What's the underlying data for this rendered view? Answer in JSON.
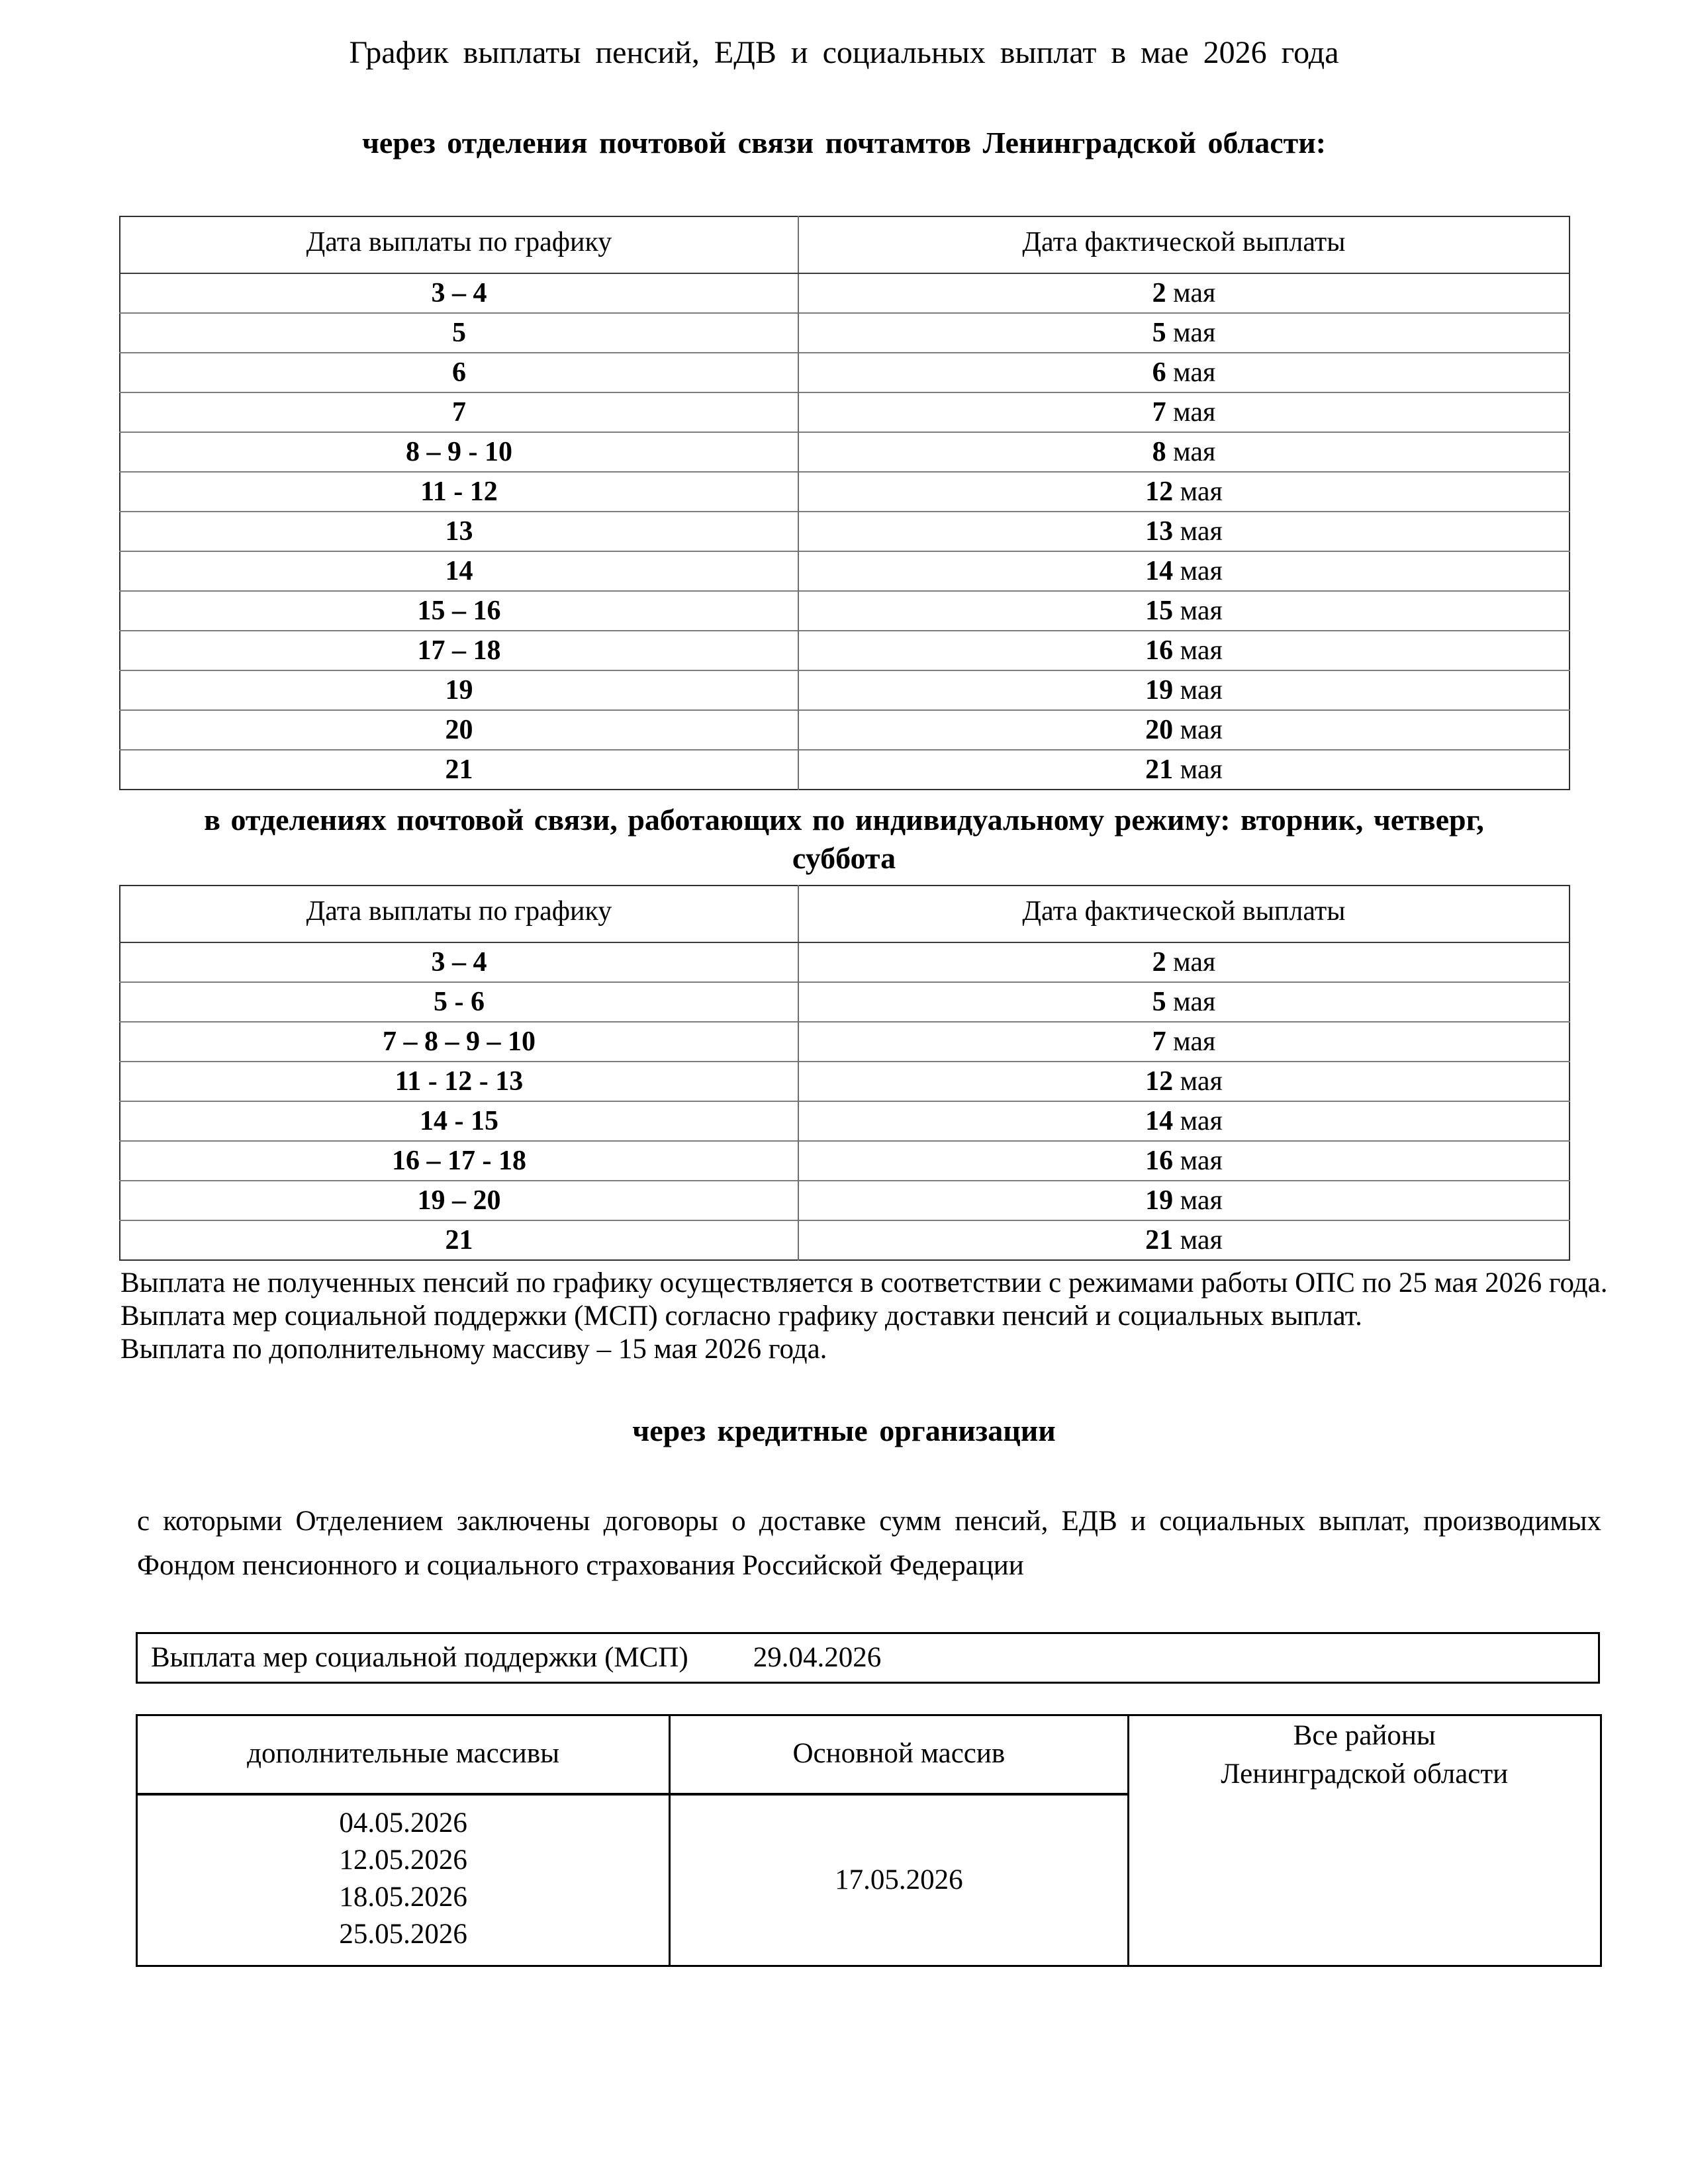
{
  "title": "График выплаты пенсий, ЕДВ и социальных выплат в мае 2026  года",
  "section_post": {
    "heading": "через отделения почтовой связи  почтамтов Ленинградской области:",
    "table": {
      "col1_header": "Дата выплаты по графику",
      "col2_header": "Дата фактической выплаты",
      "rows": [
        {
          "schedule": "3 – 4",
          "day": "2",
          "month": "мая"
        },
        {
          "schedule": "5",
          "day": "5",
          "month": "мая"
        },
        {
          "schedule": "6",
          "day": "6",
          "month": "мая"
        },
        {
          "schedule": "7",
          "day": "7",
          "month": "мая"
        },
        {
          "schedule": "8 – 9 - 10",
          "day": "8",
          "month": "мая"
        },
        {
          "schedule": "11 - 12",
          "day": "12",
          "month": "мая"
        },
        {
          "schedule": "13",
          "day": "13",
          "month": "мая"
        },
        {
          "schedule": "14",
          "day": "14",
          "month": "мая"
        },
        {
          "schedule": "15 – 16",
          "day": "15",
          "month": "мая"
        },
        {
          "schedule": "17 – 18",
          "day": "16",
          "month": "мая"
        },
        {
          "schedule": "19",
          "day": "19",
          "month": "мая"
        },
        {
          "schedule": "20",
          "day": "20",
          "month": "мая"
        },
        {
          "schedule": "21",
          "day": "21",
          "month": "мая"
        }
      ]
    }
  },
  "section_individual": {
    "heading_line1": "в отделениях почтовой связи, работающих по индивидуальному режиму: вторник, четверг,",
    "heading_line2": "суббота",
    "table": {
      "col1_header": "Дата выплаты по графику",
      "col2_header": "Дата фактической выплаты",
      "rows": [
        {
          "schedule": "3 – 4",
          "day": "2",
          "month": "мая"
        },
        {
          "schedule": "5 - 6",
          "day": "5",
          "month": "мая"
        },
        {
          "schedule": "7 – 8 – 9 – 10",
          "day": "7",
          "month": "мая"
        },
        {
          "schedule": "11 - 12 - 13",
          "day": "12",
          "month": "мая"
        },
        {
          "schedule": "14 - 15",
          "day": "14",
          "month": "мая"
        },
        {
          "schedule": "16 – 17 - 18",
          "day": "16",
          "month": "мая"
        },
        {
          "schedule": "19 – 20",
          "day": "19",
          "month": "мая"
        },
        {
          "schedule": "21",
          "day": "21",
          "month": "мая"
        }
      ]
    }
  },
  "notes": {
    "note1": "Выплата не полученных пенсий по графику осуществляется в соответствии с режимами работы ОПС по 25 мая 2026 года.",
    "note2": "Выплата мер социальной поддержки (МСП) согласно графику доставки пенсий и социальных выплат.",
    "note3": "Выплата по дополнительному массиву – 15 мая  2026 года."
  },
  "section_credit": {
    "heading": "через кредитные организации",
    "paragraph": "с которыми Отделением заключены договоры о доставке сумм пенсий, ЕДВ  и социальных выплат, производимых Фондом пенсионного и социального страхования Российской Федерации",
    "msp_row": {
      "label": "Выплата мер социальной поддержки (МСП)",
      "date": "29.04.2026"
    },
    "table": {
      "col1_header": "дополнительные массивы",
      "col2_header": "Основной массив",
      "additional_dates": [
        "04.05.2026",
        "12.05.2026",
        "18.05.2026",
        "25.05.2026"
      ],
      "main_date": "17.05.2026",
      "regions_line1": "Все районы",
      "regions_line2": "Ленинградской области"
    }
  }
}
